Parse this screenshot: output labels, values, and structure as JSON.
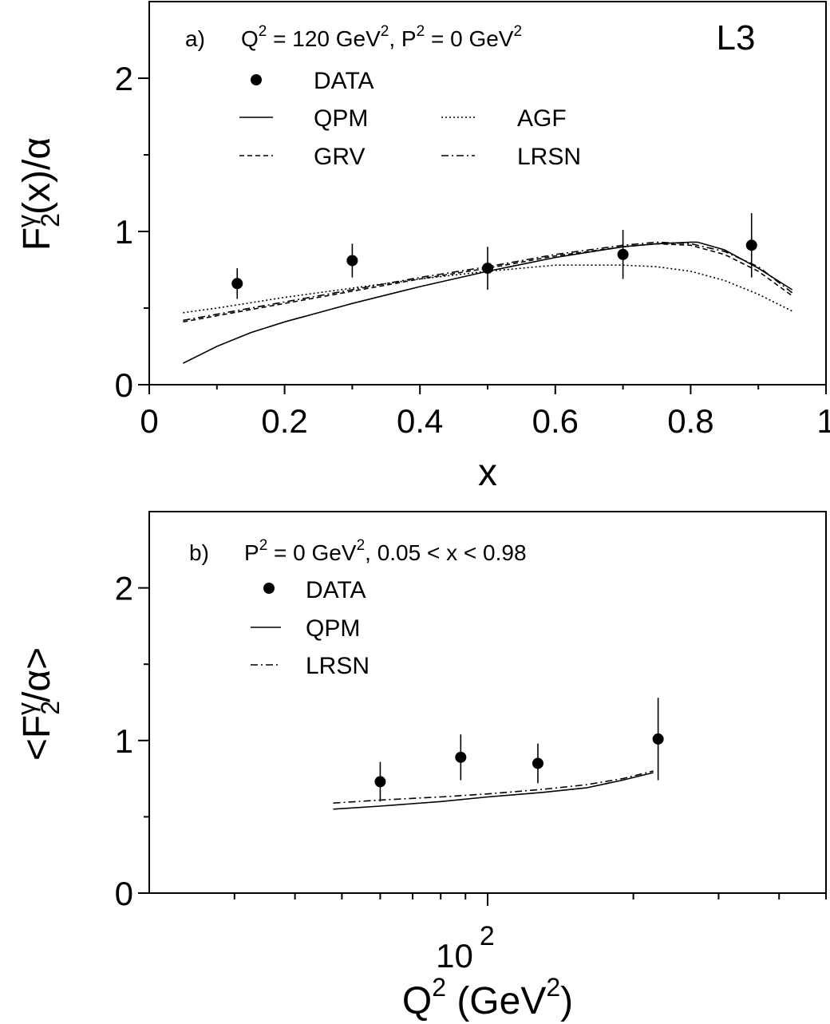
{
  "chart_data": [
    {
      "type": "scatter",
      "panel_label": "a)",
      "condition_parts": [
        "Q",
        "2",
        " = 120 GeV",
        "2",
        ", P",
        "2",
        " = 0 GeV",
        "2"
      ],
      "experiment": "L3",
      "xlabel": "x",
      "ylabel_parts": [
        "F",
        "2",
        "γ",
        "(x)/α"
      ],
      "xlim": [
        0,
        1
      ],
      "ylim": [
        0,
        2.5
      ],
      "xticks": [
        0,
        0.2,
        0.4,
        0.6,
        0.8,
        1
      ],
      "xtick_labels": [
        "0",
        "0.2",
        "0.4",
        "0.6",
        "0.8",
        "1"
      ],
      "yticks": [
        0,
        1,
        2
      ],
      "ytick_labels": [
        "0",
        "1",
        "2"
      ],
      "legend": [
        {
          "label": "DATA",
          "style": "marker"
        },
        {
          "label": "QPM",
          "style": "solid"
        },
        {
          "label": "AGF",
          "style": "dotted"
        },
        {
          "label": "GRV",
          "style": "dashed"
        },
        {
          "label": "LRSN",
          "style": "dashdot"
        }
      ],
      "data_points": [
        {
          "x": 0.13,
          "y": 0.66,
          "err": 0.1
        },
        {
          "x": 0.3,
          "y": 0.81,
          "err": 0.11
        },
        {
          "x": 0.5,
          "y": 0.76,
          "err": 0.14
        },
        {
          "x": 0.7,
          "y": 0.85,
          "err": 0.16
        },
        {
          "x": 0.89,
          "y": 0.91,
          "err": 0.21
        }
      ],
      "series": [
        {
          "name": "QPM",
          "style": "solid",
          "x": [
            0.05,
            0.1,
            0.15,
            0.2,
            0.3,
            0.4,
            0.5,
            0.6,
            0.7,
            0.75,
            0.8,
            0.81,
            0.85,
            0.9,
            0.95
          ],
          "y": [
            0.14,
            0.25,
            0.34,
            0.41,
            0.53,
            0.64,
            0.74,
            0.83,
            0.9,
            0.92,
            0.93,
            0.93,
            0.88,
            0.76,
            0.62
          ]
        },
        {
          "name": "GRV",
          "style": "dashed",
          "x": [
            0.05,
            0.1,
            0.2,
            0.3,
            0.4,
            0.5,
            0.6,
            0.7,
            0.75,
            0.8,
            0.85,
            0.9,
            0.95
          ],
          "y": [
            0.41,
            0.45,
            0.53,
            0.61,
            0.69,
            0.76,
            0.84,
            0.9,
            0.92,
            0.91,
            0.85,
            0.74,
            0.58
          ]
        },
        {
          "name": "AGF",
          "style": "dotted",
          "x": [
            0.05,
            0.1,
            0.2,
            0.3,
            0.4,
            0.5,
            0.6,
            0.7,
            0.75,
            0.8,
            0.85,
            0.9,
            0.95
          ],
          "y": [
            0.47,
            0.5,
            0.57,
            0.63,
            0.69,
            0.74,
            0.78,
            0.78,
            0.77,
            0.74,
            0.68,
            0.59,
            0.48
          ]
        },
        {
          "name": "LRSN",
          "style": "dashdot",
          "x": [
            0.05,
            0.1,
            0.2,
            0.3,
            0.4,
            0.5,
            0.6,
            0.7,
            0.75,
            0.8,
            0.85,
            0.9,
            0.95
          ],
          "y": [
            0.42,
            0.46,
            0.54,
            0.62,
            0.7,
            0.77,
            0.85,
            0.91,
            0.93,
            0.92,
            0.87,
            0.77,
            0.6
          ]
        }
      ]
    },
    {
      "type": "scatter",
      "panel_label": "b)",
      "condition_parts": [
        "P",
        "2",
        " = 0 GeV",
        "2",
        ",  0.05 < x < 0.98"
      ],
      "xlabel_parts": [
        "Q",
        "2",
        " (GeV",
        "2",
        ")"
      ],
      "ylabel_parts": [
        "<F",
        "2",
        "γ",
        "/α>"
      ],
      "xscale": "log",
      "xlim": [
        20,
        500
      ],
      "ylim": [
        0,
        2.5
      ],
      "xticks_major": [
        100
      ],
      "xtick_major_labels": [
        {
          "base": "10",
          "exp": "2"
        }
      ],
      "xticks_minor": [
        30,
        40,
        50,
        60,
        70,
        80,
        90,
        200,
        300,
        400,
        500
      ],
      "yticks": [
        0,
        1,
        2
      ],
      "ytick_labels": [
        "0",
        "1",
        "2"
      ],
      "legend": [
        {
          "label": "DATA",
          "style": "marker"
        },
        {
          "label": "QPM",
          "style": "solid"
        },
        {
          "label": "LRSN",
          "style": "dashdot"
        }
      ],
      "data_points": [
        {
          "x": 60,
          "y": 0.73,
          "err": 0.13
        },
        {
          "x": 88,
          "y": 0.89,
          "err": 0.15
        },
        {
          "x": 127,
          "y": 0.85,
          "err": 0.13
        },
        {
          "x": 225,
          "y": 1.01,
          "err": 0.27
        }
      ],
      "series": [
        {
          "name": "QPM",
          "style": "solid",
          "x": [
            48,
            60,
            80,
            100,
            130,
            160,
            190,
            220
          ],
          "y": [
            0.55,
            0.57,
            0.6,
            0.63,
            0.66,
            0.69,
            0.74,
            0.79
          ]
        },
        {
          "name": "LRSN",
          "style": "dashdot",
          "x": [
            48,
            60,
            80,
            100,
            130,
            160,
            190,
            220
          ],
          "y": [
            0.59,
            0.61,
            0.63,
            0.65,
            0.68,
            0.71,
            0.75,
            0.8
          ]
        }
      ]
    }
  ]
}
